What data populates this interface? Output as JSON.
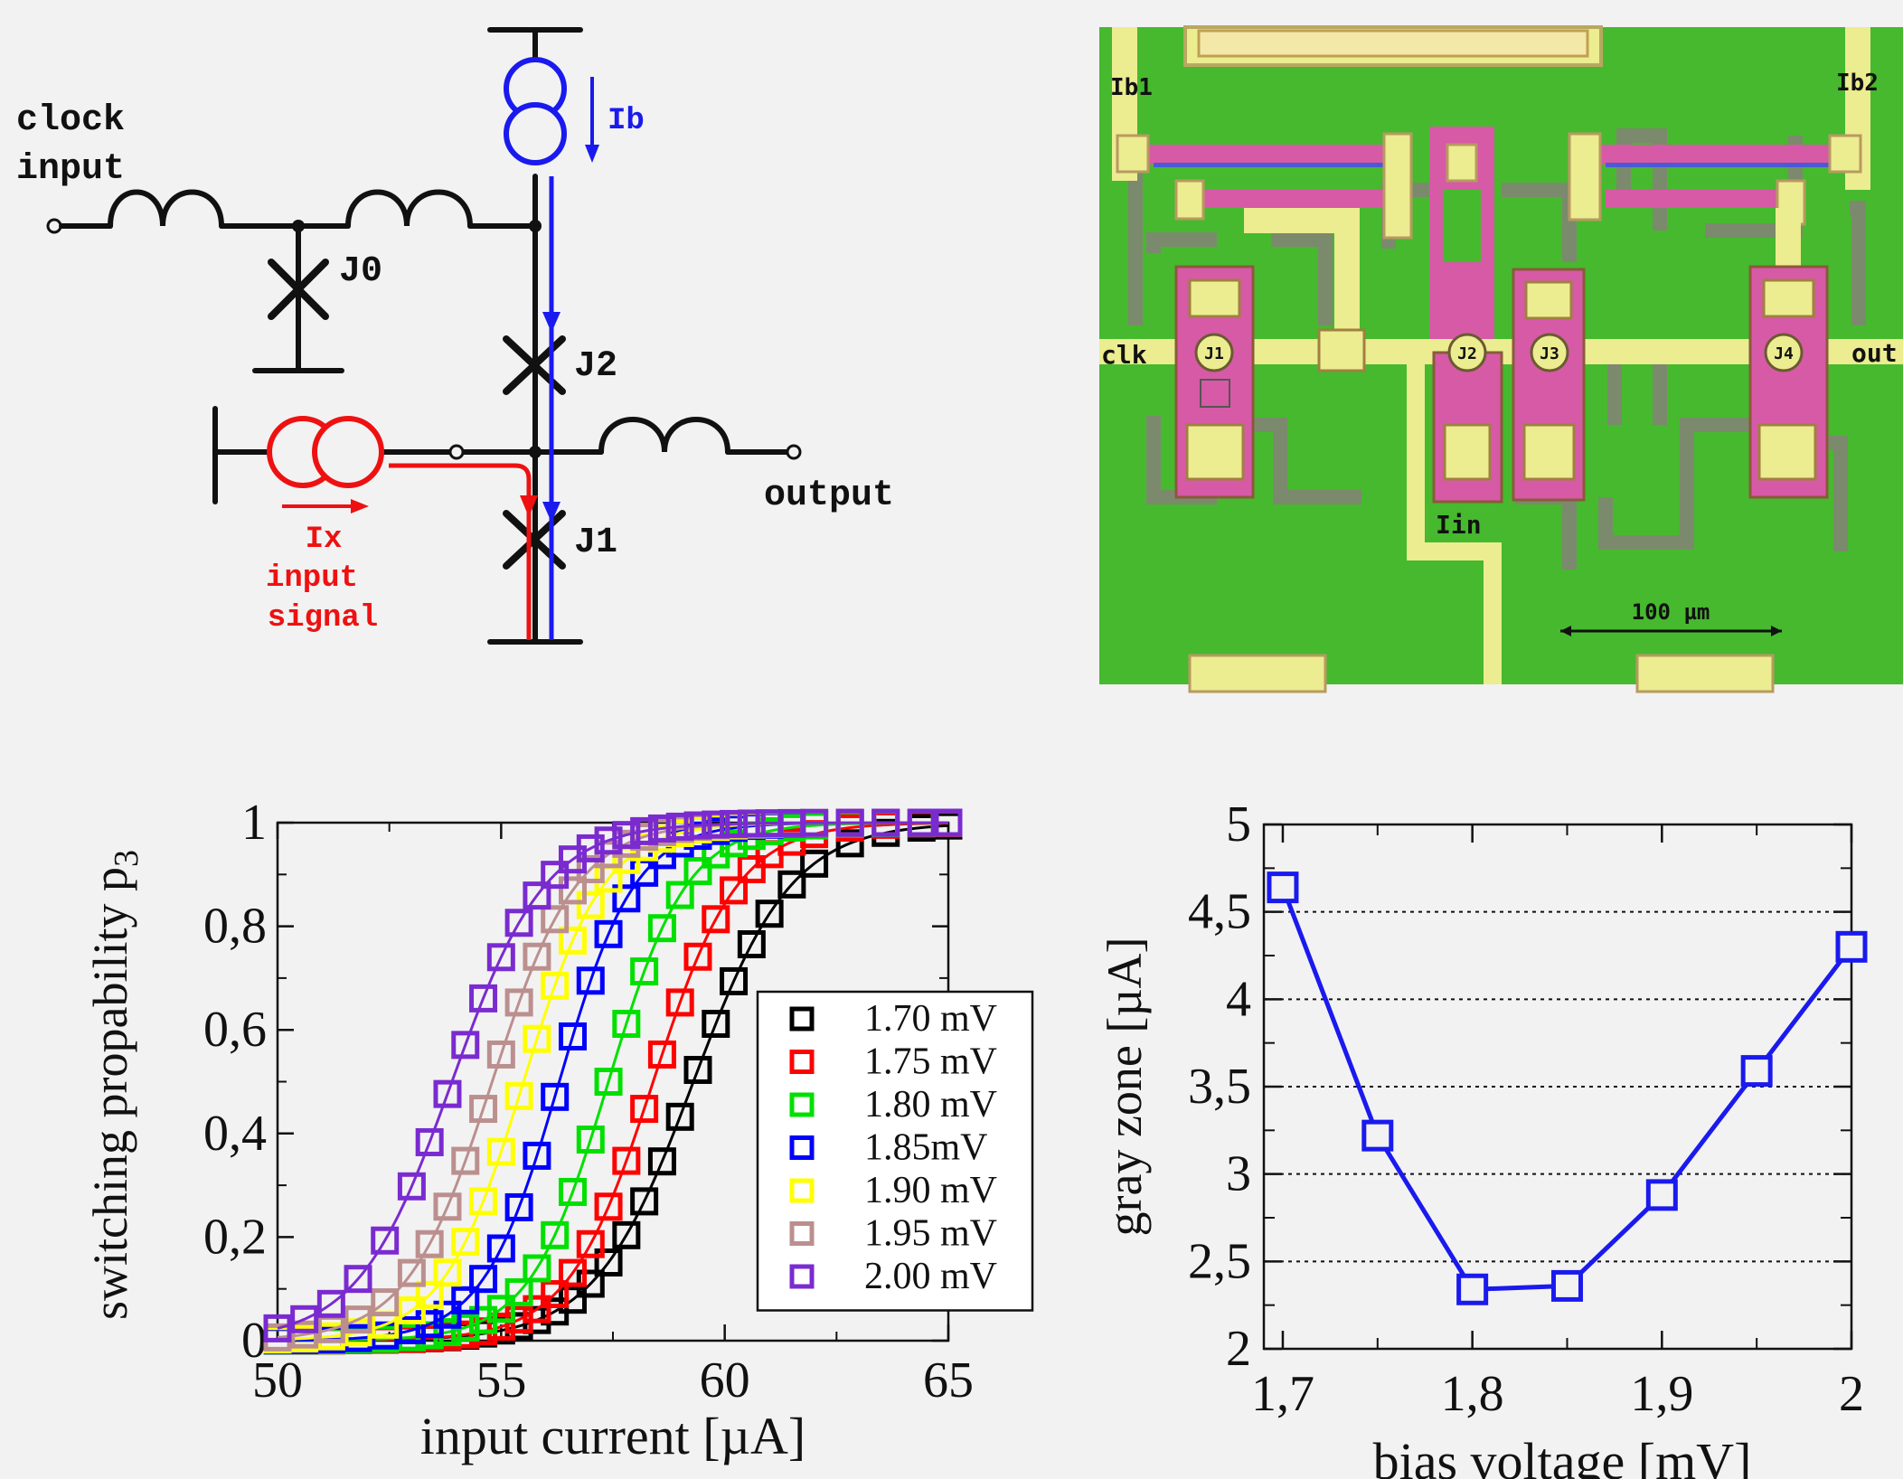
{
  "schematic": {
    "clock_label_1": "clock",
    "clock_label_2": "input",
    "j0": "J0",
    "j1": "J1",
    "j2": "J2",
    "ib": "Ib",
    "ix_1": "Ix",
    "ix_2": "input",
    "ix_3": "signal",
    "output": "output",
    "colors": {
      "wire": "#111111",
      "bias": "#1a1aee",
      "signal": "#ee1111"
    }
  },
  "micrograph": {
    "ib1": "Ib1",
    "ib2": "Ib2",
    "clk": "clk",
    "out": "out",
    "iin": "Iin",
    "j1": "J1",
    "j2": "J2",
    "j3": "J3",
    "j4": "J4",
    "scale": "100 µm",
    "colors": {
      "substrate": "#46b92e",
      "metal": "#ecec90",
      "resistor": "#d65aa6",
      "ground": "#7b8a6c"
    }
  },
  "chart_data": [
    {
      "type": "scatter",
      "xlabel": "input current [µA]",
      "ylabel_main": "switching propability p",
      "ylabel_sub": "3",
      "xlim": [
        50,
        65
      ],
      "ylim": [
        0,
        1
      ],
      "x_ticks": [
        50,
        55,
        60,
        65
      ],
      "x_tick_labels": [
        "50",
        "55",
        "60",
        "65"
      ],
      "y_ticks": [
        0,
        0.2,
        0.4,
        0.6,
        0.8,
        1
      ],
      "y_tick_labels": [
        "0",
        "0,2",
        "0,4",
        "0,6",
        "0,8",
        "1"
      ],
      "legend_position": "bottom-right",
      "markers": "open squares with fitted sigmoid curves",
      "series": [
        {
          "name": "1.70 mV",
          "color": "#000000",
          "center": 59.3,
          "width": 1.1
        },
        {
          "name": "1.75 mV",
          "color": "#ff0000",
          "center": 58.4,
          "width": 0.95
        },
        {
          "name": "1.80 mV",
          "color": "#00e000",
          "center": 57.4,
          "width": 0.88
        },
        {
          "name": "1.85mV",
          "color": "#0000ff",
          "center": 56.3,
          "width": 0.85
        },
        {
          "name": "1.90 mV",
          "color": "#ffff00",
          "center": 55.5,
          "width": 0.9
        },
        {
          "name": "1.95 mV",
          "color": "#bc8f8f",
          "center": 54.8,
          "width": 0.95
        },
        {
          "name": "2.00 mV",
          "color": "#7a2bd0",
          "center": 53.9,
          "width": 1.05
        }
      ],
      "x_samples": [
        50,
        50.6,
        51.2,
        51.8,
        52.4,
        53.0,
        53.4,
        53.8,
        54.2,
        54.6,
        55.0,
        55.4,
        55.8,
        56.2,
        56.6,
        57.0,
        57.4,
        57.8,
        58.2,
        58.6,
        59.0,
        59.4,
        59.8,
        60.2,
        60.6,
        61.0,
        61.5,
        62.0,
        62.8,
        63.6,
        64.4,
        65.0
      ]
    },
    {
      "type": "line",
      "xlabel": "bias voltage [mV]",
      "ylabel": "gray zone [µA]",
      "xlim": [
        1.69,
        2.0
      ],
      "ylim": [
        2,
        5
      ],
      "x_ticks": [
        1.7,
        1.8,
        1.9,
        2.0
      ],
      "x_tick_labels": [
        "1,7",
        "1,8",
        "1,9",
        "2"
      ],
      "y_ticks": [
        2,
        2.5,
        3,
        3.5,
        4,
        4.5,
        5
      ],
      "y_tick_labels": [
        "2",
        "2,5",
        "3",
        "3,5",
        "4",
        "4,5",
        "5"
      ],
      "grid": "horizontal dotted",
      "color": "#1a1aee",
      "x": [
        1.7,
        1.75,
        1.8,
        1.85,
        1.9,
        1.95,
        2.0
      ],
      "y": [
        4.64,
        3.22,
        2.34,
        2.36,
        2.88,
        3.59,
        4.3
      ]
    }
  ]
}
